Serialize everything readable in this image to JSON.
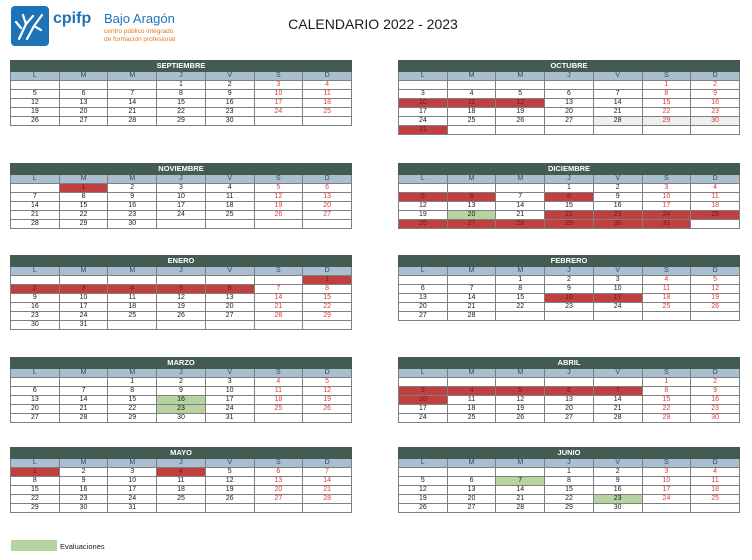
{
  "logo": {
    "brand": "cpifp",
    "name": "Bajo Aragón",
    "line1": "centro público integrado",
    "line2": "de formación profesional"
  },
  "title": "CALENDARIO 2022 - 2023",
  "colors": {
    "header": "#445b54",
    "dayHeader": "#a9bfcf",
    "holiday": "#c04040",
    "evaluation": "#b7d4a0",
    "weekend": "#e03a3a"
  },
  "weekdays": [
    "L",
    "M",
    "M",
    "J",
    "V",
    "S",
    "D"
  ],
  "months": [
    {
      "name": "SEPTIEMBRE",
      "rows": [
        [
          "",
          "",
          "",
          "1",
          "2",
          "3",
          "4"
        ],
        [
          "5",
          "6",
          "7",
          "8",
          "9",
          "10",
          "11"
        ],
        [
          "12",
          "13",
          "14",
          "15",
          "16",
          "17",
          "18"
        ],
        [
          "19",
          "20",
          "21",
          "22",
          "23",
          "24",
          "25"
        ],
        [
          "26",
          "27",
          "28",
          "29",
          "30",
          "",
          ""
        ]
      ],
      "holidays": [],
      "evaluations": []
    },
    {
      "name": "OCTUBRE",
      "rows": [
        [
          "",
          "",
          "",
          "",
          "",
          "1",
          "2"
        ],
        [
          "3",
          "4",
          "5",
          "6",
          "7",
          "8",
          "9"
        ],
        [
          "10",
          "11",
          "12",
          "13",
          "14",
          "15",
          "16"
        ],
        [
          "17",
          "18",
          "19",
          "20",
          "21",
          "22",
          "23"
        ],
        [
          "24",
          "25",
          "26",
          "27",
          "28",
          "29",
          "30"
        ],
        [
          "31",
          "",
          "",
          "",
          "",
          "",
          ""
        ]
      ],
      "holidays": [
        "10",
        "11",
        "12",
        "31"
      ],
      "evaluations": [],
      "grey": [
        "28",
        "29",
        "30"
      ]
    },
    {
      "name": "NOVIEMBRE",
      "rows": [
        [
          "",
          "1",
          "2",
          "3",
          "4",
          "5",
          "6"
        ],
        [
          "7",
          "8",
          "9",
          "10",
          "11",
          "12",
          "13"
        ],
        [
          "14",
          "15",
          "16",
          "17",
          "18",
          "19",
          "20"
        ],
        [
          "21",
          "22",
          "23",
          "24",
          "25",
          "26",
          "27"
        ],
        [
          "28",
          "29",
          "30",
          "",
          "",
          "",
          ""
        ]
      ],
      "holidays": [
        "1"
      ],
      "evaluations": []
    },
    {
      "name": "DICIEMBRE",
      "rows": [
        [
          "",
          "",
          "",
          "1",
          "2",
          "3",
          "4"
        ],
        [
          "5",
          "6",
          "7",
          "8",
          "9",
          "10",
          "11"
        ],
        [
          "12",
          "13",
          "14",
          "15",
          "16",
          "17",
          "18"
        ],
        [
          "19",
          "20",
          "21",
          "22",
          "23",
          "24",
          "25"
        ],
        [
          "26",
          "27",
          "28",
          "29",
          "30",
          "31",
          ""
        ]
      ],
      "holidays": [
        "5",
        "6",
        "8",
        "22",
        "23",
        "24",
        "25",
        "26",
        "27",
        "28",
        "29",
        "30",
        "31"
      ],
      "evaluations": [
        "20"
      ]
    },
    {
      "name": "ENERO",
      "rows": [
        [
          "",
          "",
          "",
          "",
          "",
          "",
          "1"
        ],
        [
          "2",
          "3",
          "4",
          "5",
          "6",
          "7",
          "8"
        ],
        [
          "9",
          "10",
          "11",
          "12",
          "13",
          "14",
          "15"
        ],
        [
          "16",
          "17",
          "18",
          "19",
          "20",
          "21",
          "22"
        ],
        [
          "23",
          "24",
          "25",
          "26",
          "27",
          "28",
          "29"
        ],
        [
          "30",
          "31",
          "",
          "",
          "",
          "",
          ""
        ]
      ],
      "holidays": [
        "1",
        "2",
        "3",
        "4",
        "5",
        "6"
      ],
      "evaluations": []
    },
    {
      "name": "FEBRERO",
      "rows": [
        [
          "",
          "",
          "1",
          "2",
          "3",
          "4",
          "5"
        ],
        [
          "6",
          "7",
          "8",
          "9",
          "10",
          "11",
          "12"
        ],
        [
          "13",
          "14",
          "15",
          "16",
          "17",
          "18",
          "19"
        ],
        [
          "20",
          "21",
          "22",
          "23",
          "24",
          "25",
          "26"
        ],
        [
          "27",
          "28",
          "",
          "",
          "",
          "",
          ""
        ]
      ],
      "holidays": [
        "16",
        "17"
      ],
      "evaluations": []
    },
    {
      "name": "MARZO",
      "rows": [
        [
          "",
          "",
          "1",
          "2",
          "3",
          "4",
          "5"
        ],
        [
          "6",
          "7",
          "8",
          "9",
          "10",
          "11",
          "12"
        ],
        [
          "13",
          "14",
          "15",
          "16",
          "17",
          "18",
          "19"
        ],
        [
          "20",
          "21",
          "22",
          "23",
          "24",
          "25",
          "26"
        ],
        [
          "27",
          "28",
          "29",
          "30",
          "31",
          "",
          ""
        ]
      ],
      "holidays": [],
      "evaluations": [
        "16",
        "23"
      ]
    },
    {
      "name": "ABRIL",
      "rows": [
        [
          "",
          "",
          "",
          "",
          "",
          "1",
          "2"
        ],
        [
          "3",
          "4",
          "5",
          "6",
          "7",
          "8",
          "9"
        ],
        [
          "10",
          "11",
          "12",
          "13",
          "14",
          "15",
          "16"
        ],
        [
          "17",
          "18",
          "19",
          "20",
          "21",
          "22",
          "23"
        ],
        [
          "24",
          "25",
          "26",
          "27",
          "28",
          "29",
          "30"
        ]
      ],
      "holidays": [
        "3",
        "4",
        "5",
        "6",
        "7",
        "10"
      ],
      "evaluations": []
    },
    {
      "name": "MAYO",
      "rows": [
        [
          "1",
          "2",
          "3",
          "4",
          "5",
          "6",
          "7"
        ],
        [
          "8",
          "9",
          "10",
          "11",
          "12",
          "13",
          "14"
        ],
        [
          "15",
          "16",
          "17",
          "18",
          "19",
          "20",
          "21"
        ],
        [
          "22",
          "23",
          "24",
          "25",
          "26",
          "27",
          "28"
        ],
        [
          "29",
          "30",
          "31",
          "",
          "",
          "",
          ""
        ]
      ],
      "holidays": [
        "1",
        "4"
      ],
      "evaluations": []
    },
    {
      "name": "JUNIO",
      "rows": [
        [
          "",
          "",
          "",
          "1",
          "2",
          "3",
          "4"
        ],
        [
          "5",
          "6",
          "7",
          "8",
          "9",
          "10",
          "11"
        ],
        [
          "12",
          "13",
          "14",
          "15",
          "16",
          "17",
          "18"
        ],
        [
          "19",
          "20",
          "21",
          "22",
          "23",
          "24",
          "25"
        ],
        [
          "26",
          "27",
          "28",
          "29",
          "30",
          "",
          ""
        ]
      ],
      "holidays": [],
      "evaluations": [
        "7",
        "23"
      ]
    }
  ],
  "legend": {
    "label": "Evaluaciones"
  }
}
